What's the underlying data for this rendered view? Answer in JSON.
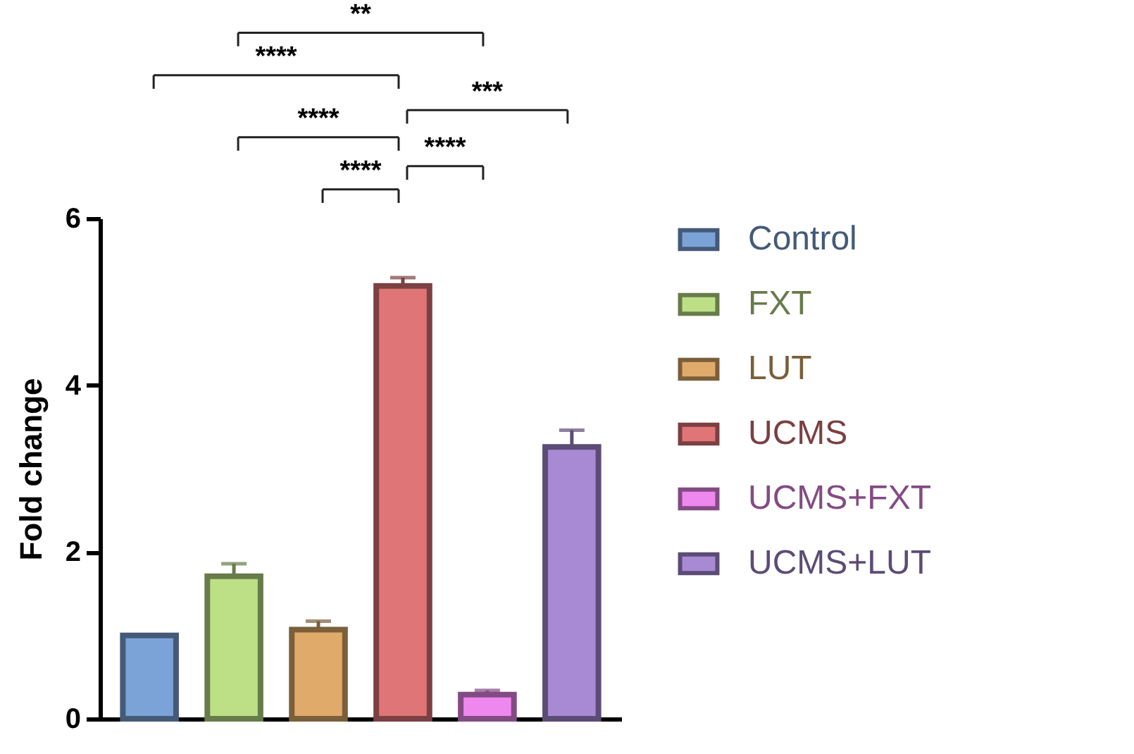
{
  "chart_data": {
    "type": "bar",
    "ylabel": "Fold change",
    "categories": [
      null,
      null,
      null,
      null,
      null,
      null
    ],
    "series": [
      {
        "name": "Control",
        "color": "#7ba3d8",
        "values": [
          1.0,
          null,
          null,
          null,
          null,
          null
        ],
        "errors": [
          null,
          null,
          null,
          null,
          null,
          null
        ]
      },
      {
        "name": "FXT",
        "color": "#bde087",
        "values": [
          null,
          1.71,
          null,
          null,
          null,
          null
        ],
        "errors": [
          null,
          0.15,
          null,
          null,
          null,
          null
        ]
      },
      {
        "name": "LUT",
        "color": "#e0aa6a",
        "values": [
          null,
          null,
          1.07,
          null,
          null,
          null
        ],
        "errors": [
          null,
          null,
          0.1,
          null,
          null,
          null
        ]
      },
      {
        "name": "UCMS",
        "color": "#e07578",
        "values": [
          null,
          null,
          null,
          5.19,
          null,
          null
        ],
        "errors": [
          null,
          null,
          null,
          0.1,
          null,
          null
        ]
      },
      {
        "name": "UCMS+FXT",
        "color": "#ee88ee",
        "values": [
          null,
          null,
          null,
          null,
          0.29,
          null
        ],
        "errors": [
          null,
          null,
          null,
          null,
          0.05,
          null
        ]
      },
      {
        "name": "UCMS+LUT",
        "color": "#a88ad4",
        "values": [
          null,
          null,
          null,
          null,
          null,
          3.26
        ],
        "errors": [
          null,
          null,
          null,
          null,
          null,
          0.2
        ]
      }
    ],
    "ylim": [
      0,
      6
    ],
    "yticks": [
      {
        "value": 0,
        "label": "0"
      },
      {
        "value": 2,
        "label": "2"
      },
      {
        "value": 4,
        "label": "4"
      },
      {
        "value": 6,
        "label": "6"
      }
    ],
    "grid": false,
    "legend": "right",
    "tick_labels": "y",
    "annotations": [
      "**",
      "****",
      "***",
      "****",
      "****",
      "****"
    ]
  }
}
